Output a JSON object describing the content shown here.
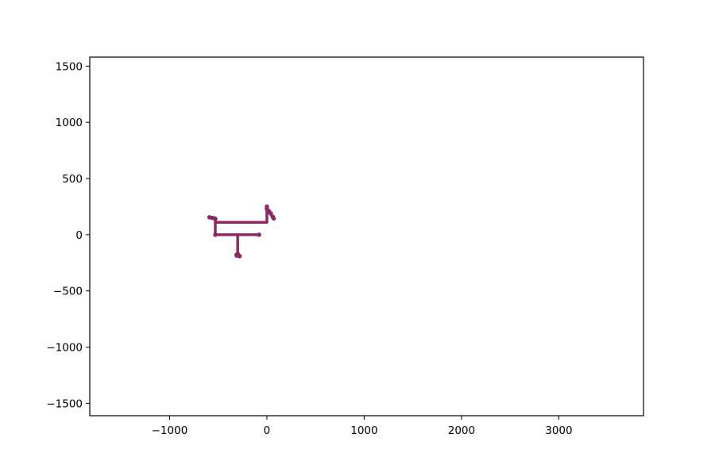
{
  "chart_data": {
    "type": "line",
    "title": "",
    "xlabel": "",
    "ylabel": "",
    "xlim": [
      -1820,
      3870
    ],
    "ylim": [
      -1610,
      1580
    ],
    "grid": false,
    "legend": "none",
    "x_ticks": [
      {
        "value": -1000,
        "label": "−1000"
      },
      {
        "value": 0,
        "label": "0"
      },
      {
        "value": 1000,
        "label": "1000"
      },
      {
        "value": 2000,
        "label": "2000"
      },
      {
        "value": 3000,
        "label": "3000"
      }
    ],
    "y_ticks": [
      {
        "value": 1500,
        "label": "1500"
      },
      {
        "value": 1000,
        "label": "1000"
      },
      {
        "value": 500,
        "label": "500"
      },
      {
        "value": 0,
        "label": "0"
      },
      {
        "value": -500,
        "label": "−500"
      },
      {
        "value": -1000,
        "label": "−1000"
      },
      {
        "value": -1500,
        "label": "−1500"
      }
    ],
    "series": [
      {
        "color": "#8c2a65",
        "segments": [
          {
            "x": [
              -590,
              -530
            ],
            "y": [
              155,
              150
            ]
          },
          {
            "x": [
              -530,
              0
            ],
            "y": [
              110,
              110
            ]
          },
          {
            "x": [
              -530,
              -530
            ],
            "y": [
              150,
              0
            ]
          },
          {
            "x": [
              -530,
              -80
            ],
            "y": [
              0,
              0
            ]
          },
          {
            "x": [
              -300,
              -300
            ],
            "y": [
              0,
              -190
            ]
          },
          {
            "x": [
              0,
              0
            ],
            "y": [
              110,
              220
            ]
          },
          {
            "x": [
              0,
              70
            ],
            "y": [
              220,
              150
            ]
          },
          {
            "x": [
              -320,
              -280
            ],
            "y": [
              -175,
              -185
            ]
          }
        ],
        "points": [
          {
            "x": -590,
            "y": 155
          },
          {
            "x": -560,
            "y": 150
          },
          {
            "x": -530,
            "y": 140
          },
          {
            "x": -530,
            "y": 0
          },
          {
            "x": -80,
            "y": 0
          },
          {
            "x": -300,
            "y": -170
          },
          {
            "x": -310,
            "y": -185
          },
          {
            "x": -280,
            "y": -190
          },
          {
            "x": 0,
            "y": 250
          },
          {
            "x": 0,
            "y": 230
          },
          {
            "x": 20,
            "y": 210
          },
          {
            "x": 40,
            "y": 190
          },
          {
            "x": 60,
            "y": 160
          },
          {
            "x": 70,
            "y": 145
          }
        ]
      }
    ]
  }
}
